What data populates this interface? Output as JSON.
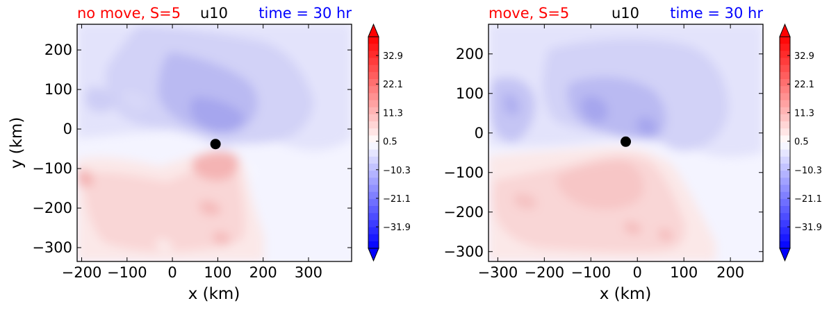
{
  "colors": {
    "red": "#ff0000",
    "blue": "#0000ff",
    "black": "#000000"
  },
  "chart_data": [
    {
      "type": "heatmap",
      "title_left": "no move, S=5",
      "title_center": "u10",
      "title_right": "time = 30 hr",
      "xlabel": "x (km)",
      "ylabel": "y (km)",
      "xlim": [
        -210,
        395
      ],
      "ylim": [
        -335,
        265
      ],
      "xticks": [
        "−200",
        "−100",
        "0",
        "100",
        "200",
        "300"
      ],
      "xtick_values": [
        -200,
        -100,
        0,
        100,
        200,
        300
      ],
      "yticks": [
        "200",
        "100",
        "0",
        "−100",
        "−200",
        "−300"
      ],
      "ytick_values": [
        200,
        100,
        0,
        -100,
        -200,
        -300
      ],
      "center_marker": {
        "x": 95,
        "y": -38
      },
      "colorbar": {
        "range": [
          -40,
          40
        ],
        "ticks": [
          "32.9",
          "22.1",
          "11.3",
          "0.5",
          "−10.3",
          "−21.1",
          "−31.9"
        ],
        "tick_values": [
          32.9,
          22.1,
          11.3,
          0.5,
          -10.3,
          -21.1,
          -31.9
        ]
      }
    },
    {
      "type": "heatmap",
      "title_left": "move, S=5",
      "title_center": "u10",
      "title_right": "time = 30 hr",
      "xlabel": "x (km)",
      "ylabel": "",
      "xlim": [
        -320,
        270
      ],
      "ylim": [
        -325,
        275
      ],
      "xticks": [
        "−300",
        "−200",
        "−100",
        "0",
        "100",
        "200"
      ],
      "xtick_values": [
        -300,
        -200,
        -100,
        0,
        100,
        200
      ],
      "yticks": [
        "200",
        "100",
        "0",
        "−100",
        "−200",
        "−300"
      ],
      "ytick_values": [
        200,
        100,
        0,
        -100,
        -200,
        -300
      ],
      "center_marker": {
        "x": -25,
        "y": -22
      },
      "colorbar": {
        "range": [
          -40,
          40
        ],
        "ticks": [
          "32.9",
          "22.1",
          "11.3",
          "0.5",
          "−10.3",
          "−21.1",
          "−31.9"
        ],
        "tick_values": [
          32.9,
          22.1,
          11.3,
          0.5,
          -10.3,
          -21.1,
          -31.9
        ]
      }
    }
  ]
}
